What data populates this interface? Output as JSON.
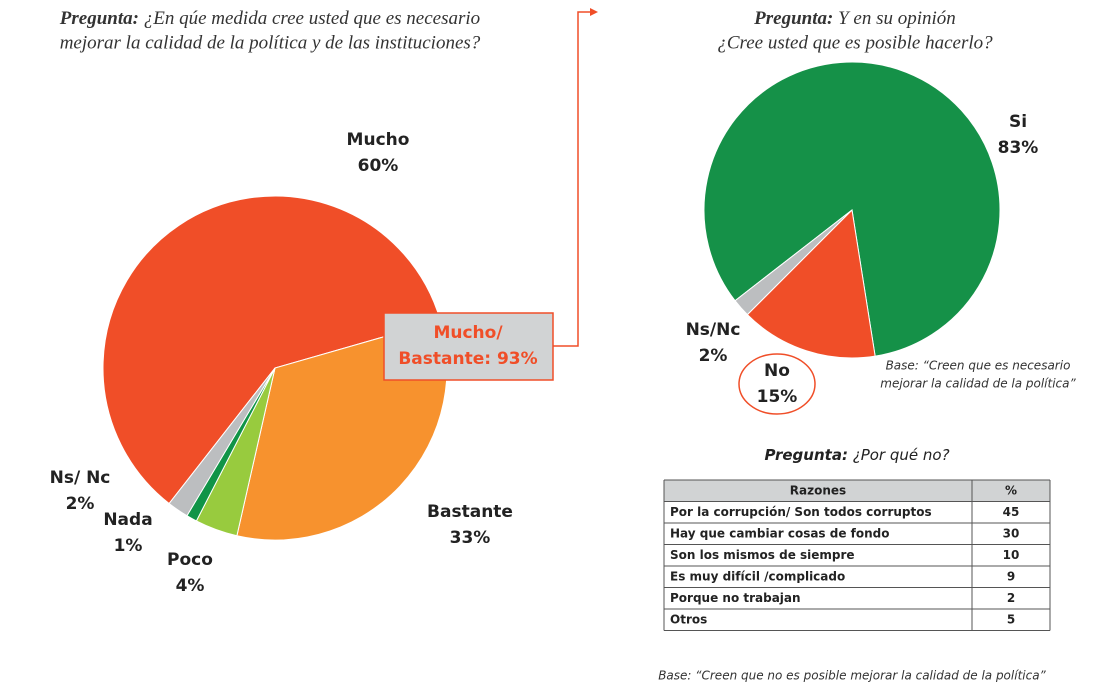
{
  "chart_data": [
    {
      "type": "pie",
      "title_prefix": "Pregunta:",
      "title": [
        "¿En qúe medida cree usted que es necesario",
        "mejorar la calidad de la política y de las instituciones?"
      ],
      "categories": [
        "Mucho",
        "Bastante",
        "Poco",
        "Nada",
        "Ns/ Nc"
      ],
      "values": [
        60,
        33,
        4,
        1,
        2
      ],
      "value_labels": [
        "60%",
        "33%",
        "4%",
        "1%",
        "2%"
      ],
      "colors": [
        "#f04e28",
        "#f7922e",
        "#98cb3e",
        "#109447",
        "#bcbec0"
      ],
      "annotation": [
        "Mucho/",
        "Bastante: 93%"
      ]
    },
    {
      "type": "pie",
      "title_prefix": "Pregunta:",
      "title": [
        "Y en su opinión",
        "¿Cree usted que es posible hacerlo?"
      ],
      "categories": [
        "Si",
        "No",
        "Ns/Nc"
      ],
      "values": [
        83,
        15,
        2
      ],
      "value_labels": [
        "83%",
        "15%",
        "2%"
      ],
      "colors": [
        "#159148",
        "#f04e28",
        "#bcbec0"
      ],
      "note": [
        "Base: “Creen que es necesario",
        "mejorar la calidad de la política”"
      ]
    }
  ],
  "table": {
    "title_prefix": "Pregunta:",
    "title": "¿Por qué no?",
    "header": [
      "Razones",
      "%"
    ],
    "rows": [
      [
        "Por la corrupción/ Son todos corruptos",
        45
      ],
      [
        "Hay que cambiar cosas de fondo",
        30
      ],
      [
        "Son los mismos de siempre",
        10
      ],
      [
        "Es muy difícil /complicado",
        9
      ],
      [
        "Porque no trabajan",
        2
      ],
      [
        "Otros",
        5
      ]
    ],
    "note": "Base: “Creen que no es posible mejorar la calidad de la política”"
  }
}
